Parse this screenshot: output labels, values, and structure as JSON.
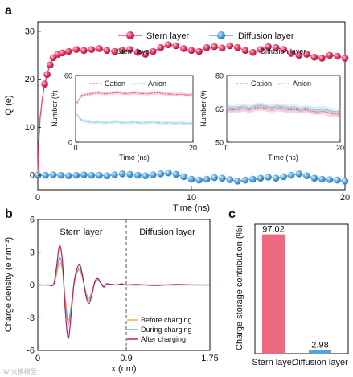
{
  "figure": {
    "watermark": "W 大模模型"
  },
  "chart_data": [
    {
      "id": "a",
      "panel_letter": "a",
      "type": "line",
      "title": "",
      "xlabel": "Time (ns)",
      "ylabel": "Q (e)",
      "xlim": [
        0,
        20
      ],
      "ylim": [
        -3,
        32
      ],
      "xticks": [
        0,
        10,
        20
      ],
      "yticks": [
        0,
        10,
        20,
        30
      ],
      "grid": false,
      "legend_position": "top-center",
      "series": [
        {
          "name": "Stern layer",
          "color": "#e8456b",
          "marker": "sphere",
          "x": [
            0,
            0.05,
            0.15,
            0.3,
            0.45,
            0.6,
            0.8,
            1.0,
            1.3,
            1.6,
            2.0,
            2.5,
            3.0,
            3.5,
            4.0,
            4.5,
            5.0,
            5.5,
            6.0,
            6.5,
            7.0,
            7.5,
            8.0,
            8.5,
            9.0,
            9.5,
            10.0,
            10.5,
            11.0,
            11.5,
            12.0,
            12.5,
            13.0,
            13.5,
            14.0,
            14.5,
            15.0,
            15.5,
            16.0,
            16.5,
            17.0,
            17.5,
            18.0,
            18.5,
            19.0,
            19.5,
            20.0
          ],
          "y": [
            0,
            6,
            12,
            16,
            19,
            21,
            23,
            24.5,
            25.2,
            25.5,
            25.8,
            26.2,
            26.0,
            26.2,
            26.4,
            26.0,
            25.8,
            26.0,
            26.2,
            25.6,
            25.2,
            25.8,
            26.6,
            27.2,
            27.0,
            26.4,
            26.0,
            25.8,
            26.6,
            26.8,
            26.5,
            27.0,
            26.6,
            26.0,
            25.6,
            26.2,
            26.8,
            26.6,
            26.2,
            25.4,
            25.0,
            25.2,
            24.6,
            24.4,
            25.0,
            24.8,
            24.4
          ]
        },
        {
          "name": "Diffusion layer",
          "color": "#5ba3d6",
          "marker": "sphere",
          "x": [
            0,
            0.5,
            1.0,
            1.5,
            2.0,
            2.5,
            3.0,
            3.5,
            4.0,
            4.5,
            5.0,
            5.5,
            6.0,
            6.5,
            7.0,
            7.5,
            8.0,
            8.5,
            9.0,
            9.5,
            10.0,
            10.5,
            11.0,
            11.5,
            12.0,
            12.5,
            13.0,
            13.5,
            14.0,
            14.5,
            15.0,
            15.5,
            16.0,
            16.5,
            17.0,
            17.5,
            18.0,
            18.5,
            19.0,
            19.5,
            20.0
          ],
          "y": [
            0,
            0,
            0.1,
            0,
            -0.1,
            0,
            0.1,
            0,
            0,
            -0.1,
            0.1,
            0.3,
            0.2,
            0,
            -0.1,
            0.1,
            0.3,
            0.5,
            0.2,
            -0.3,
            -0.8,
            -1.0,
            -0.8,
            -0.5,
            -0.6,
            -0.9,
            -1.2,
            -1.0,
            -0.8,
            -0.6,
            -0.4,
            -0.6,
            -0.3,
            0,
            0.3,
            -0.1,
            -0.6,
            -0.8,
            -0.9,
            -1.0,
            -1.2
          ]
        }
      ]
    },
    {
      "id": "a_inset_stern",
      "type": "line",
      "title": "Stern layer",
      "xlabel": "Time (ns)",
      "ylabel": "Number (#)",
      "xlim": [
        0,
        20
      ],
      "ylim": [
        0,
        60
      ],
      "xticks": [
        0,
        20
      ],
      "yticks": [
        0,
        60
      ],
      "legend_position": "top",
      "series": [
        {
          "name": "Cation",
          "color": "#e8456b",
          "style": "dashed-with-band",
          "x": [
            0,
            0.5,
            1,
            2,
            3,
            4,
            5,
            6,
            7,
            8,
            9,
            10,
            11,
            12,
            13,
            14,
            15,
            16,
            17,
            18,
            19,
            20
          ],
          "y": [
            33,
            38,
            42,
            43,
            44,
            44.5,
            43.5,
            44.2,
            44.8,
            44,
            43.8,
            44.5,
            44,
            43.6,
            44.2,
            44.6,
            43.8,
            43.4,
            42.8,
            43.2,
            42.4,
            42.8
          ]
        },
        {
          "name": "Anion",
          "color": "#6fc0d8",
          "style": "dashed-with-band",
          "x": [
            0,
            0.5,
            1,
            2,
            3,
            4,
            5,
            6,
            7,
            8,
            9,
            10,
            11,
            12,
            13,
            14,
            15,
            16,
            17,
            18,
            19,
            20
          ],
          "y": [
            27,
            23,
            20,
            18.5,
            18,
            18.2,
            17.6,
            18,
            18.4,
            17.6,
            17.8,
            18.2,
            17.4,
            17.8,
            18.2,
            17.6,
            17.2,
            17.6,
            17,
            17.4,
            16.8,
            17.2
          ]
        }
      ]
    },
    {
      "id": "a_inset_diffusion",
      "type": "line",
      "title": "Diffusion layer",
      "xlabel": "Time (ns)",
      "ylabel": "Number (#)",
      "xlim": [
        0,
        20
      ],
      "ylim": [
        50,
        80
      ],
      "xticks": [
        0,
        20
      ],
      "yticks": [
        50,
        65,
        80
      ],
      "legend_position": "top",
      "series": [
        {
          "name": "Cation",
          "color": "#e8456b",
          "style": "dashed-with-band",
          "x": [
            0,
            1,
            2,
            3,
            4,
            5,
            6,
            7,
            8,
            9,
            10,
            11,
            12,
            13,
            14,
            15,
            16,
            17,
            18,
            19,
            20
          ],
          "y": [
            65,
            64.6,
            64.8,
            65.2,
            64.6,
            65.4,
            65.8,
            65.2,
            64.8,
            65.4,
            65,
            64.6,
            64.8,
            64.2,
            64.6,
            64,
            63.6,
            64,
            63.2,
            62.6,
            62.8
          ]
        },
        {
          "name": "Anion",
          "color": "#6fc0d8",
          "style": "dashed-with-band",
          "x": [
            0,
            1,
            2,
            3,
            4,
            5,
            6,
            7,
            8,
            9,
            10,
            11,
            12,
            13,
            14,
            15,
            16,
            17,
            18,
            19,
            20
          ],
          "y": [
            65.6,
            65.2,
            65.6,
            66,
            65.4,
            66.2,
            66.6,
            66,
            65.6,
            66.2,
            65.8,
            65.4,
            65.6,
            65,
            65.4,
            64.8,
            64.6,
            65,
            64.4,
            63.8,
            64
          ]
        }
      ]
    },
    {
      "id": "b",
      "panel_letter": "b",
      "type": "line",
      "title": "",
      "xlabel": "x (nm)",
      "ylabel": "Charge density (e nm⁻³)",
      "xlim": [
        0,
        1.75
      ],
      "ylim": [
        -6,
        6
      ],
      "xticks": [
        0,
        0.9,
        1.75
      ],
      "yticks": [
        -6,
        -3,
        0,
        3,
        6
      ],
      "region_labels": [
        "Stern layer",
        "Diffusion layer"
      ],
      "divider_x": 0.9,
      "legend_position": "bottom-right",
      "series": [
        {
          "name": "Before charging",
          "color": "#f5b041",
          "x": [
            0,
            0.1,
            0.16,
            0.19,
            0.22,
            0.25,
            0.28,
            0.31,
            0.34,
            0.37,
            0.4,
            0.43,
            0.46,
            0.49,
            0.52,
            0.55,
            0.58,
            0.61,
            0.64,
            0.67,
            0.7,
            0.75,
            0.8,
            0.85,
            0.9,
            1.0,
            1.2,
            1.4,
            1.6,
            1.75
          ],
          "y": [
            0,
            0,
            0.05,
            0.9,
            2.0,
            1.4,
            -1.2,
            -3.2,
            -1.8,
            0.1,
            1.1,
            1.3,
            0.4,
            -0.7,
            -1.2,
            -0.6,
            0.2,
            0.4,
            0.2,
            -0.1,
            0.05,
            0.05,
            0,
            0.05,
            0,
            0,
            0,
            0,
            0,
            0
          ]
        },
        {
          "name": "During charging",
          "color": "#6fa8dc",
          "x": [
            0,
            0.1,
            0.16,
            0.19,
            0.22,
            0.25,
            0.28,
            0.31,
            0.34,
            0.37,
            0.4,
            0.43,
            0.46,
            0.49,
            0.52,
            0.55,
            0.58,
            0.61,
            0.64,
            0.67,
            0.7,
            0.75,
            0.8,
            0.85,
            0.9,
            1.0,
            1.2,
            1.4,
            1.6,
            1.75
          ],
          "y": [
            0,
            0,
            0.05,
            1.2,
            2.5,
            1.6,
            -1.6,
            -3.6,
            -2.0,
            0.2,
            1.2,
            1.5,
            0.5,
            -0.8,
            -1.4,
            -0.7,
            0.2,
            0.5,
            0.2,
            -0.1,
            0.05,
            0.05,
            0,
            0.05,
            0,
            0,
            0,
            0,
            0,
            0
          ]
        },
        {
          "name": "After charging",
          "color": "#c2185b",
          "x": [
            0,
            0.1,
            0.16,
            0.19,
            0.22,
            0.25,
            0.28,
            0.31,
            0.34,
            0.37,
            0.4,
            0.43,
            0.46,
            0.49,
            0.52,
            0.55,
            0.58,
            0.61,
            0.64,
            0.67,
            0.7,
            0.75,
            0.8,
            0.85,
            0.9,
            1.0,
            1.2,
            1.4,
            1.6,
            1.75
          ],
          "y": [
            0,
            0,
            0.05,
            1.6,
            3.6,
            2.2,
            -2.4,
            -4.9,
            -2.6,
            0.3,
            1.5,
            1.8,
            0.6,
            -1.0,
            -1.7,
            -0.9,
            0.3,
            0.6,
            0.2,
            -0.2,
            0.1,
            0.05,
            0,
            0.1,
            0,
            0.05,
            -0.05,
            0.05,
            0,
            0
          ]
        }
      ]
    },
    {
      "id": "c",
      "panel_letter": "c",
      "type": "bar",
      "title": "",
      "xlabel": "",
      "ylabel": "Charge storage contribution (%)",
      "ylim": [
        0,
        100
      ],
      "categories": [
        "Stern layer",
        "Diffusion layer"
      ],
      "values": [
        97.02,
        2.98
      ],
      "value_labels": [
        "97.02",
        "2.98"
      ],
      "colors": [
        "#ee6a7f",
        "#5ba3d6"
      ]
    }
  ]
}
